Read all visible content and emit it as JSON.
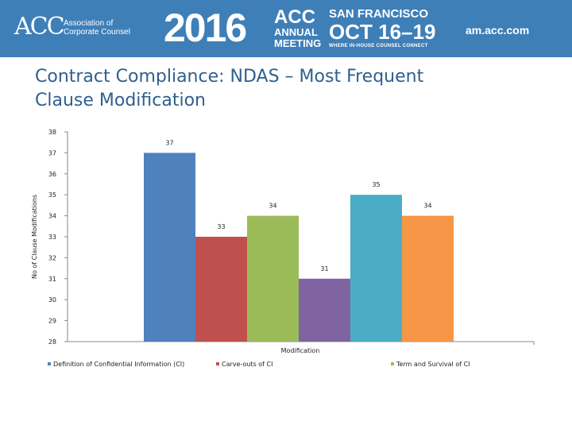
{
  "header": {
    "logo_mark": "ACC",
    "logo_org": "Association of Corporate Counsel",
    "year": "2016",
    "conference_line1": "ACC",
    "conference_line2": "ANNUAL",
    "conference_line3": "MEETING",
    "city": "SAN FRANCISCO",
    "dates": "OCT 16–19",
    "tagline": "WHERE IN-HOUSE COUNSEL CONNECT",
    "site": "am.acc.com",
    "banner_color": "#3f7fb8"
  },
  "slide": {
    "title": "Contract Compliance: NDAS – Most Frequent Clause Modification"
  },
  "chart_data": {
    "type": "bar",
    "title": "",
    "xlabel": "Modification",
    "ylabel": "No of Clause Modifications",
    "ylim": [
      28,
      38
    ],
    "yticks": [
      28,
      29,
      30,
      31,
      32,
      33,
      34,
      35,
      36,
      37,
      38
    ],
    "grid": false,
    "legend_position": "bottom",
    "series": [
      {
        "name": "Definition of Confidential Information (CI)",
        "value": 37,
        "color": "#4f81bd"
      },
      {
        "name": "Carve-outs of CI",
        "value": 33,
        "color": "#c0504d"
      },
      {
        "name": "Term and Survival of CI",
        "value": 34,
        "color": "#9bbb59"
      },
      {
        "name": "",
        "value": 31,
        "color": "#8064a2"
      },
      {
        "name": "",
        "value": 35,
        "color": "#4bacc6"
      },
      {
        "name": "",
        "value": 34,
        "color": "#f79646"
      }
    ],
    "legend_visible": [
      0,
      1,
      2
    ]
  }
}
